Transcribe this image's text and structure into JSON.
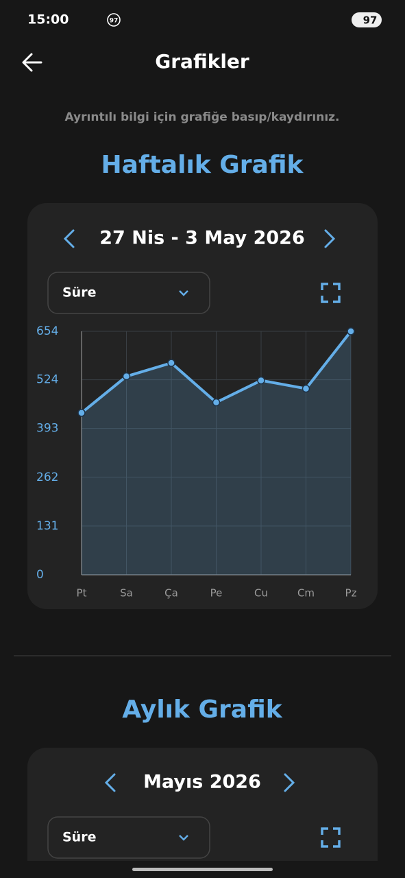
{
  "status_bar": {
    "time": "15:00",
    "badge": "97",
    "battery": "97"
  },
  "header": {
    "title": "Grafikler"
  },
  "hint": "Ayrıntılı bilgi için grafiğe basıp/kaydırınız.",
  "weekly": {
    "title": "Haftalık Grafik",
    "range": "27 Nis - 3 May 2026",
    "dropdown": "Süre"
  },
  "monthly": {
    "title": "Aylık Grafik",
    "range": "Mayıs 2026",
    "dropdown": "Süre"
  },
  "chart_data": {
    "type": "line",
    "categories": [
      "Pt",
      "Sa",
      "Ça",
      "Pe",
      "Cu",
      "Cm",
      "Pz"
    ],
    "values": [
      435,
      533,
      569,
      463,
      522,
      500,
      654
    ],
    "color": "#64aee8",
    "ylim": [
      0,
      654
    ],
    "yticks": [
      0,
      131,
      262,
      393,
      524,
      654
    ],
    "grid": true
  }
}
